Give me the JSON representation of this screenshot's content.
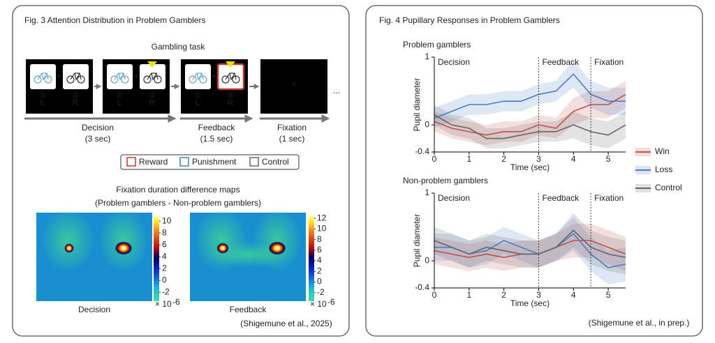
{
  "fig3": {
    "title": "Fig. 3 Attention Distribution in Problem Gamblers",
    "task_label": "Gambling task",
    "keys": {
      "left_num": "①",
      "left": "L",
      "right_num": "②",
      "right": "R"
    },
    "fixation_cross": "+",
    "ellipsis": "...",
    "phases": [
      {
        "name": "Decision",
        "duration": "(3 sec)"
      },
      {
        "name": "Feedback",
        "duration": "(1.5 sec)"
      },
      {
        "name": "Fixation",
        "duration": "(1 sec)"
      }
    ],
    "legend": [
      "Reward",
      "Punishment",
      "Control"
    ],
    "maps_title": [
      "Fixation duration difference maps",
      "(Problem gamblers - Non-problem gamblers)"
    ],
    "maps": [
      {
        "label": "Decision",
        "clim": [
          -3.5,
          11.2
        ],
        "ticks": [
          10,
          8,
          6,
          4,
          2,
          0,
          -2
        ]
      },
      {
        "label": "Feedback",
        "clim": [
          -3.6,
          12.8
        ],
        "ticks": [
          12,
          10,
          8,
          6,
          4,
          2,
          0,
          -2
        ]
      }
    ],
    "scale": "× 10",
    "scale_exp": "-6",
    "citation": "(Shigemune et al., 2025)"
  },
  "fig4": {
    "title": "Fig. 4 Pupillary Responses in Problem Gamblers",
    "citation": "(Shigemune et al., in prep.)"
  },
  "chart_data": [
    {
      "type": "line",
      "title": "Problem gamblers",
      "x_label": "Time (sec)",
      "y_label": "Pupil diameter",
      "x": [
        0,
        0.5,
        1,
        1.5,
        2,
        2.5,
        3,
        3.5,
        4,
        4.5,
        5,
        5.5
      ],
      "xlim": [
        0,
        5.5
      ],
      "xticks": [
        0,
        1,
        2,
        3,
        4,
        5
      ],
      "ylim": [
        -0.4,
        1
      ],
      "yticks": [
        -0.4,
        0,
        1
      ],
      "phases": [
        {
          "label": "Decision",
          "start": 0
        },
        {
          "label": "Feedback",
          "start": 3
        },
        {
          "label": "Fixation",
          "start": 4.5
        }
      ],
      "series": [
        {
          "name": "Win",
          "color": "#c0504d",
          "values": [
            0.05,
            -0.05,
            -0.1,
            -0.15,
            -0.1,
            -0.1,
            0,
            -0.05,
            0.2,
            0.3,
            0.3,
            0.45
          ],
          "errors": [
            0.15,
            0.15,
            0.15,
            0.15,
            0.15,
            0.15,
            0.15,
            0.15,
            0.2,
            0.2,
            0.2,
            0.2
          ]
        },
        {
          "name": "Loss",
          "color": "#4a7cc4",
          "values": [
            0.1,
            0.2,
            0.3,
            0.3,
            0.35,
            0.35,
            0.45,
            0.5,
            0.75,
            0.45,
            0.35,
            0.35
          ],
          "errors": [
            0.15,
            0.15,
            0.15,
            0.15,
            0.15,
            0.15,
            0.15,
            0.15,
            0.2,
            0.2,
            0.2,
            0.2
          ]
        },
        {
          "name": "Control",
          "color": "#666666",
          "values": [
            0.15,
            0,
            -0.05,
            -0.2,
            -0.2,
            -0.15,
            -0.1,
            -0.1,
            0,
            -0.1,
            -0.15,
            0
          ],
          "errors": [
            0.15,
            0.15,
            0.15,
            0.15,
            0.15,
            0.15,
            0.15,
            0.15,
            0.2,
            0.2,
            0.2,
            0.2
          ]
        }
      ]
    },
    {
      "type": "line",
      "title": "Non-problem gamblers",
      "x_label": "Time (sec)",
      "y_label": "Pupil diameter",
      "x": [
        0,
        0.5,
        1,
        1.5,
        2,
        2.5,
        3,
        3.5,
        4,
        4.5,
        5,
        5.5
      ],
      "xlim": [
        0,
        5.5
      ],
      "xticks": [
        0,
        1,
        2,
        3,
        4,
        5
      ],
      "ylim": [
        -0.4,
        1
      ],
      "yticks": [
        -0.4,
        0,
        1
      ],
      "phases": [
        {
          "label": "Decision",
          "start": 0
        },
        {
          "label": "Feedback",
          "start": 3
        },
        {
          "label": "Fixation",
          "start": 4.5
        }
      ],
      "series": [
        {
          "color": "#c0504d",
          "values": [
            0.15,
            0.1,
            0.05,
            0.1,
            0.05,
            0.1,
            0.1,
            0.2,
            0.3,
            0.3,
            0.2,
            0.1
          ],
          "errors": [
            0.2,
            0.2,
            0.2,
            0.2,
            0.2,
            0.2,
            0.2,
            0.2,
            0.25,
            0.25,
            0.25,
            0.25
          ]
        },
        {
          "color": "#4a7cc4",
          "values": [
            0.2,
            0.2,
            0.1,
            0.15,
            0.3,
            0.2,
            0.1,
            0.2,
            0.4,
            0.1,
            -0.1,
            -0.05
          ],
          "errors": [
            0.2,
            0.2,
            0.2,
            0.2,
            0.2,
            0.2,
            0.2,
            0.2,
            0.25,
            0.25,
            0.25,
            0.25
          ]
        },
        {
          "color": "#666666",
          "values": [
            0.3,
            0.2,
            0.1,
            0.2,
            0.15,
            0.1,
            0.1,
            0.2,
            0.45,
            0.2,
            0.1,
            0.05
          ],
          "errors": [
            0.2,
            0.2,
            0.2,
            0.2,
            0.2,
            0.2,
            0.2,
            0.2,
            0.25,
            0.25,
            0.25,
            0.25
          ]
        }
      ]
    }
  ]
}
